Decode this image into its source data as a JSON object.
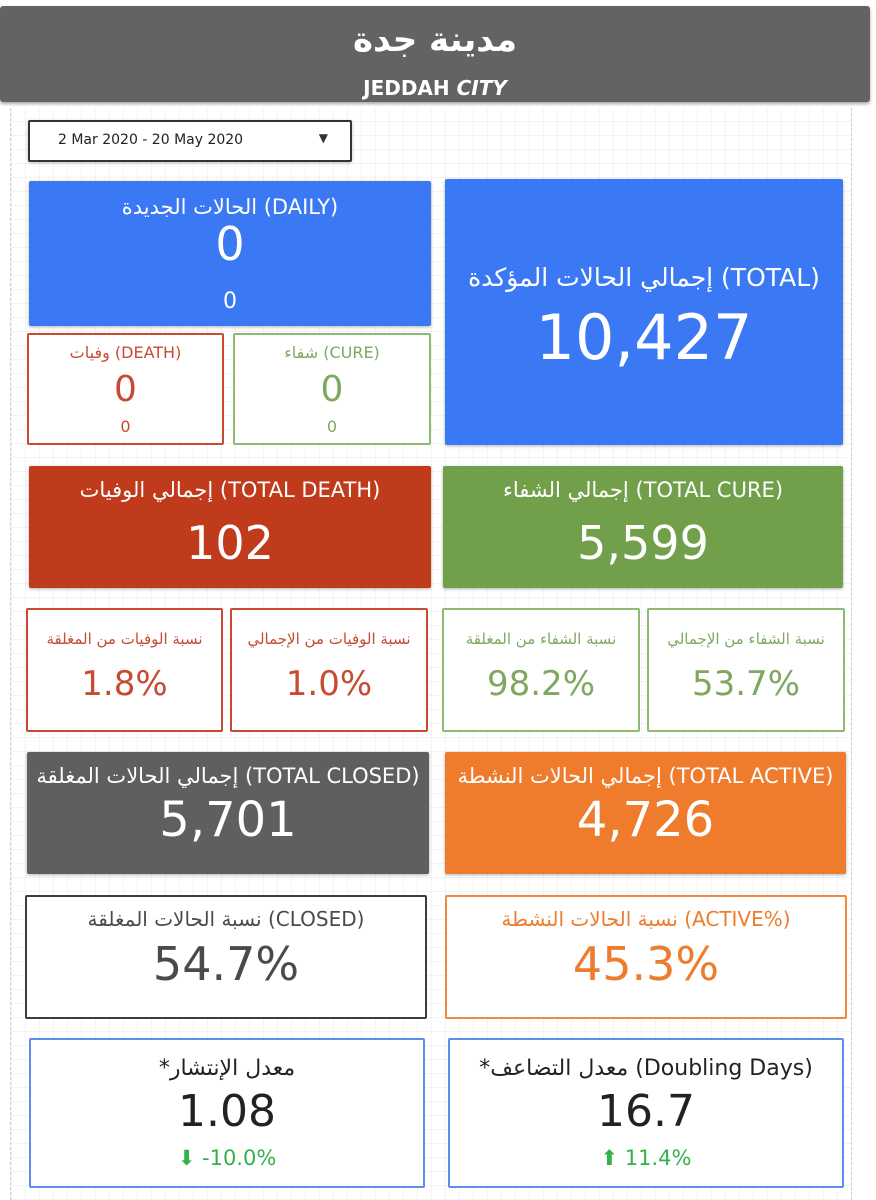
{
  "header": {
    "title_ar": "مدينة جدة",
    "title_en_1": "JEDDAH",
    "title_en_2": "CITY"
  },
  "date_range": {
    "value": "2 Mar 2020 - 20 May 2020",
    "icon": "dropdown-caret-icon"
  },
  "cards": {
    "daily": {
      "label": "الحالات الجديدة (DAILY)",
      "value": "0",
      "sub": "0"
    },
    "total_confirmed": {
      "label": "إجمالي الحالات المؤكدة (TOTAL)",
      "value": "10,427"
    },
    "death": {
      "label": "وفيات (DEATH)",
      "value": "0",
      "sub": "0"
    },
    "cure": {
      "label": "شفاء (CURE)",
      "value": "0",
      "sub": "0"
    },
    "total_death": {
      "label": "إجمالي الوفيات (TOTAL DEATH)",
      "value": "102"
    },
    "total_cure": {
      "label": "إجمالي الشفاء (TOTAL CURE)",
      "value": "5,599"
    },
    "death_closed_pct": {
      "label": "نسبة الوفيات من المغلقة",
      "value": "1.8%"
    },
    "death_total_pct": {
      "label": "نسبة الوفيات من الإجمالي",
      "value": "1.0%"
    },
    "cure_closed_pct": {
      "label": "نسبة الشفاء من المغلقة",
      "value": "98.2%"
    },
    "cure_total_pct": {
      "label": "نسبة الشفاء من الإجمالي",
      "value": "53.7%"
    },
    "total_closed": {
      "label": "إجمالي الحالات المغلقة (TOTAL CLOSED)",
      "value": "5,701"
    },
    "total_active": {
      "label": "إجمالي الحالات النشطة (TOTAL ACTIVE)",
      "value": "4,726"
    },
    "closed_pct": {
      "label": "نسبة الحالات المغلقة (CLOSED)",
      "value": "54.7%"
    },
    "active_pct": {
      "label": "نسبة الحالات النشطة (ACTIVE%)",
      "value": "45.3%"
    },
    "spread_rate": {
      "label": "*معدل الإنتشار",
      "value": "1.08",
      "delta": "-10.0%",
      "delta_icon": "arrow-down-icon"
    },
    "doubling": {
      "label": "*معدل التضاعف (Doubling Days)",
      "value": "16.7",
      "delta": "11.4%",
      "delta_icon": "arrow-up-icon"
    }
  },
  "colors": {
    "blue": "#3b79f4",
    "red": "#c03a1c",
    "green": "#72a04a",
    "gray": "#5f5f5f",
    "orange": "#ef7b2c",
    "delta_green": "#34b24a"
  }
}
